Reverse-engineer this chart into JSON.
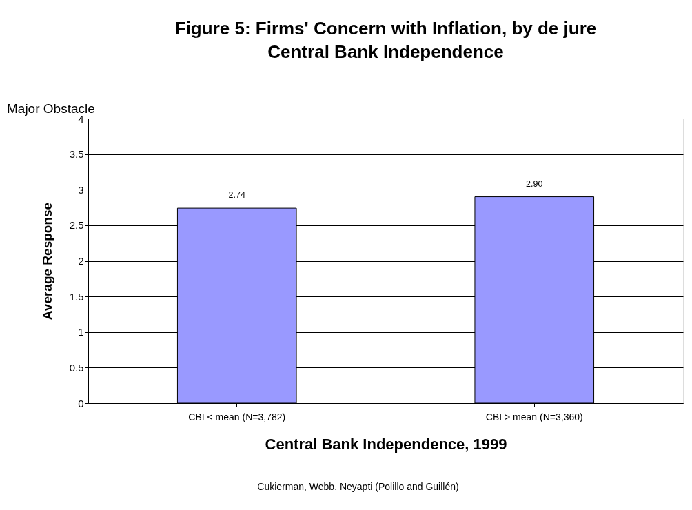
{
  "chart_data": {
    "type": "bar",
    "title": "Figure 5: Firms' Concern with Inflation, by de jure\nCentral Bank Independence",
    "xlabel": "Central Bank Independence, 1999",
    "ylabel": "Average Response",
    "categories": [
      "CBI < mean (N=3,782)",
      "CBI > mean (N=3,360)"
    ],
    "values": [
      2.74,
      2.9
    ],
    "value_labels": [
      "2.74",
      "2.90"
    ],
    "color": "#9999ff",
    "ylim": [
      0,
      4
    ],
    "yticks": [
      0,
      0.5,
      1,
      1.5,
      2,
      2.5,
      3,
      3.5,
      4
    ],
    "grid": "y",
    "annotations": [
      "Major Obstacle",
      "Cukierman, Webb, Neyapti (Polillo and Guillén)"
    ]
  }
}
